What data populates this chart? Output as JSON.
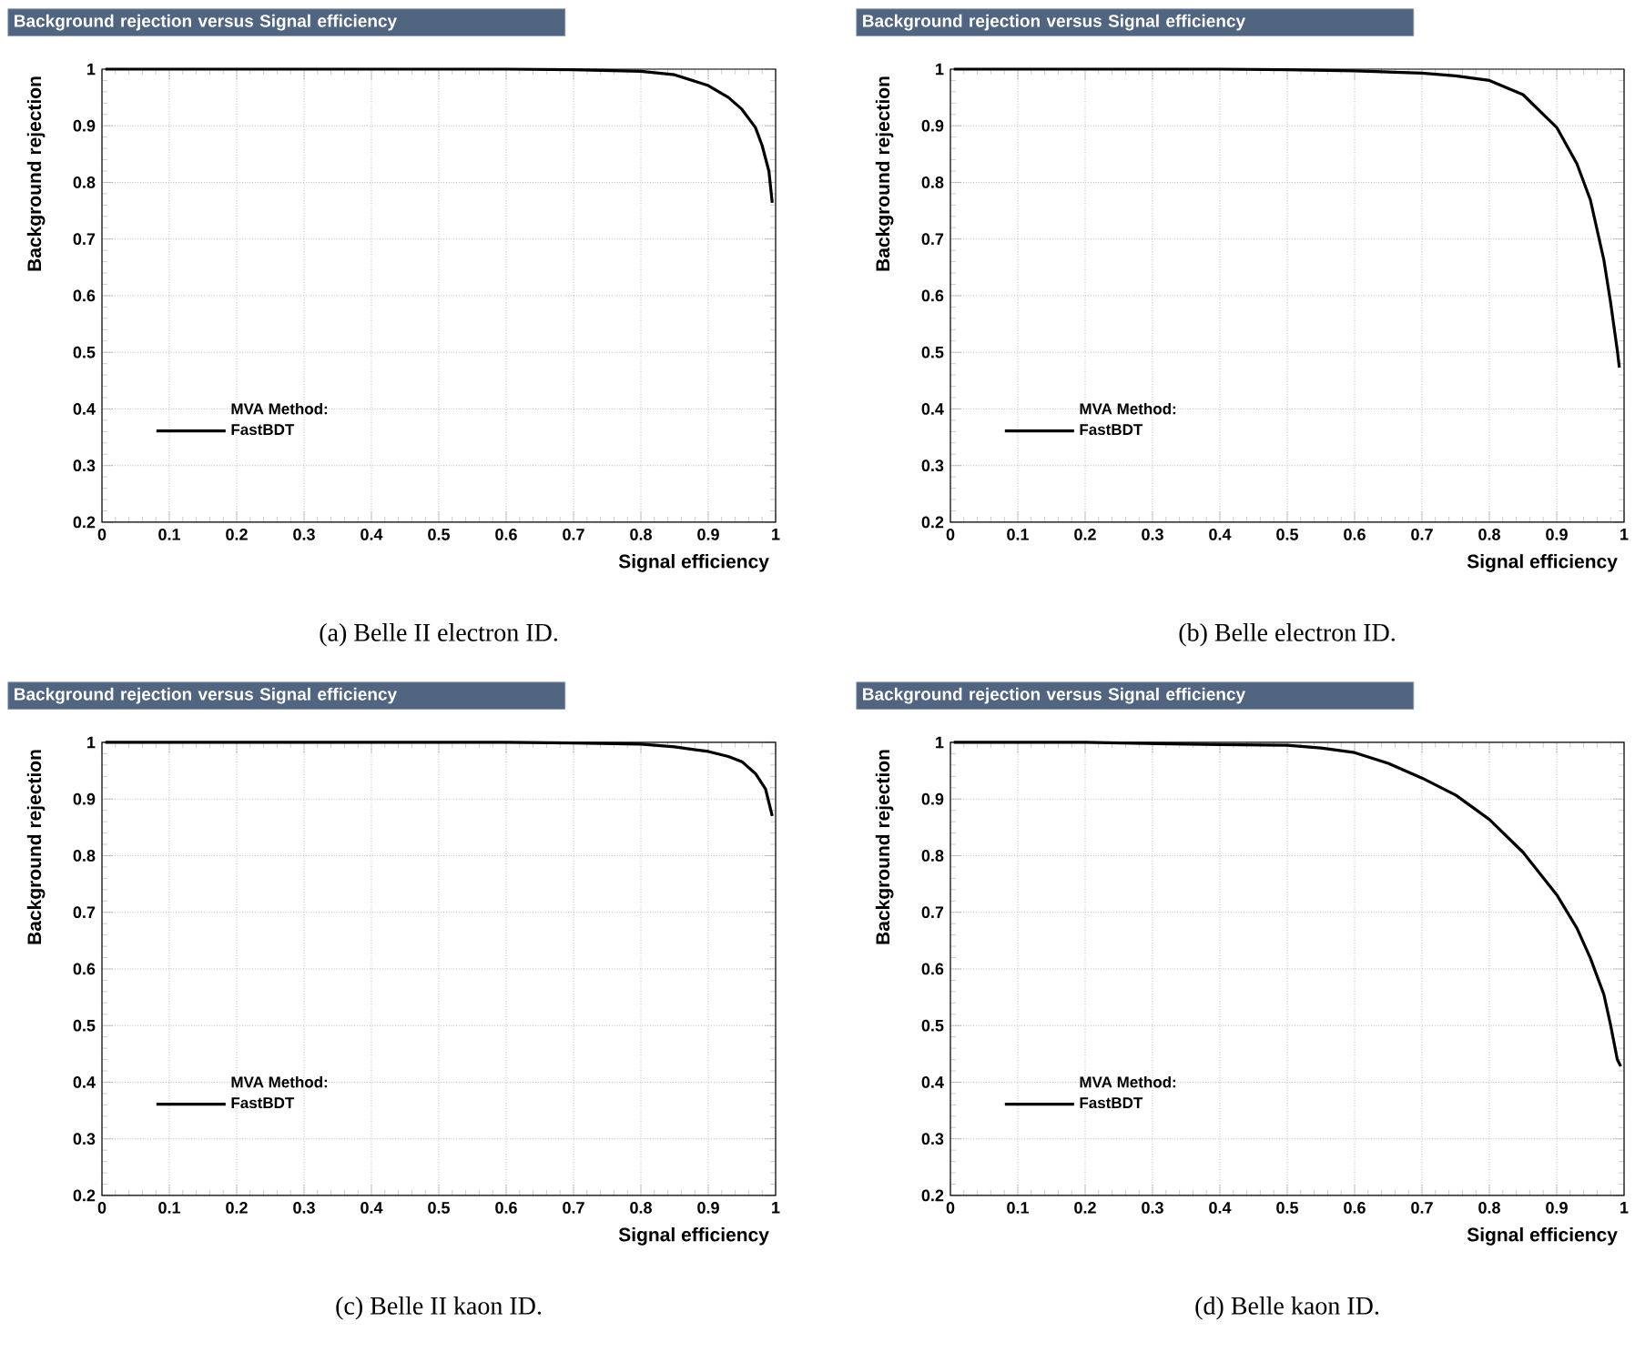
{
  "chart_data": [
    {
      "type": "line",
      "title": "Background rejection versus Signal efficiency",
      "xlabel": "Signal efficiency",
      "ylabel": "Background rejection",
      "legend_title": "MVA Method:",
      "legend": "bottom left",
      "grid": true,
      "annotations": [
        "(a) Belle II electron ID."
      ],
      "xlim": [
        0,
        1
      ],
      "ylim": [
        0.2,
        1
      ],
      "xticks": [
        0,
        0.1,
        0.2,
        0.3,
        0.4,
        0.5,
        0.6,
        0.7,
        0.8,
        0.9,
        1
      ],
      "yticks": [
        0.2,
        0.3,
        0.4,
        0.5,
        0.6,
        0.7,
        0.8,
        0.9,
        1
      ],
      "series": [
        {
          "name": "FastBDT",
          "color": "#000000",
          "x": [
            0.005,
            0.2,
            0.4,
            0.6,
            0.7,
            0.8,
            0.85,
            0.9,
            0.93,
            0.95,
            0.97,
            0.98,
            0.99,
            0.995
          ],
          "values": [
            1,
            1,
            1,
            1,
            0.999,
            0.996,
            0.99,
            0.971,
            0.95,
            0.929,
            0.897,
            0.865,
            0.82,
            0.764
          ]
        }
      ]
    },
    {
      "type": "line",
      "title": "Background rejection versus Signal efficiency",
      "xlabel": "Signal efficiency",
      "ylabel": "Background rejection",
      "legend_title": "MVA Method:",
      "legend": "bottom left",
      "grid": true,
      "annotations": [
        "(b) Belle electron ID."
      ],
      "xlim": [
        0,
        1
      ],
      "ylim": [
        0.2,
        1
      ],
      "xticks": [
        0,
        0.1,
        0.2,
        0.3,
        0.4,
        0.5,
        0.6,
        0.7,
        0.8,
        0.9,
        1
      ],
      "yticks": [
        0.2,
        0.3,
        0.4,
        0.5,
        0.6,
        0.7,
        0.8,
        0.9,
        1
      ],
      "series": [
        {
          "name": "FastBDT",
          "color": "#000000",
          "x": [
            0.005,
            0.2,
            0.4,
            0.5,
            0.6,
            0.7,
            0.75,
            0.8,
            0.85,
            0.9,
            0.93,
            0.95,
            0.97,
            0.98,
            0.99,
            0.993
          ],
          "values": [
            1,
            1,
            1,
            0.999,
            0.997,
            0.993,
            0.988,
            0.98,
            0.955,
            0.897,
            0.833,
            0.769,
            0.663,
            0.588,
            0.503,
            0.473
          ]
        }
      ]
    },
    {
      "type": "line",
      "title": "Background rejection versus Signal efficiency",
      "xlabel": "Signal efficiency",
      "ylabel": "Background rejection",
      "legend_title": "MVA Method:",
      "legend": "bottom left",
      "grid": true,
      "annotations": [
        "(c) Belle II kaon ID."
      ],
      "xlim": [
        0,
        1
      ],
      "ylim": [
        0.2,
        1
      ],
      "xticks": [
        0,
        0.1,
        0.2,
        0.3,
        0.4,
        0.5,
        0.6,
        0.7,
        0.8,
        0.9,
        1
      ],
      "yticks": [
        0.2,
        0.3,
        0.4,
        0.5,
        0.6,
        0.7,
        0.8,
        0.9,
        1
      ],
      "series": [
        {
          "name": "FastBDT",
          "color": "#000000",
          "x": [
            0.005,
            0.2,
            0.4,
            0.6,
            0.7,
            0.8,
            0.85,
            0.9,
            0.93,
            0.95,
            0.97,
            0.985,
            0.995
          ],
          "values": [
            1,
            1,
            1,
            1,
            0.999,
            0.997,
            0.992,
            0.984,
            0.975,
            0.966,
            0.945,
            0.918,
            0.87
          ]
        }
      ]
    },
    {
      "type": "line",
      "title": "Background rejection versus Signal efficiency",
      "xlabel": "Signal efficiency",
      "ylabel": "Background rejection",
      "legend_title": "MVA Method:",
      "legend": "bottom left",
      "grid": true,
      "annotations": [
        "(d) Belle kaon ID."
      ],
      "xlim": [
        0,
        1
      ],
      "ylim": [
        0.2,
        1
      ],
      "xticks": [
        0,
        0.1,
        0.2,
        0.3,
        0.4,
        0.5,
        0.6,
        0.7,
        0.8,
        0.9,
        1
      ],
      "yticks": [
        0.2,
        0.3,
        0.4,
        0.5,
        0.6,
        0.7,
        0.8,
        0.9,
        1
      ],
      "series": [
        {
          "name": "FastBDT",
          "color": "#000000",
          "x": [
            0.005,
            0.2,
            0.4,
            0.5,
            0.55,
            0.6,
            0.65,
            0.7,
            0.75,
            0.8,
            0.85,
            0.9,
            0.93,
            0.95,
            0.97,
            0.98,
            0.99,
            0.995
          ],
          "values": [
            1,
            1,
            0.996,
            0.995,
            0.99,
            0.982,
            0.963,
            0.937,
            0.907,
            0.864,
            0.806,
            0.731,
            0.672,
            0.619,
            0.555,
            0.501,
            0.44,
            0.428
          ]
        }
      ]
    }
  ]
}
